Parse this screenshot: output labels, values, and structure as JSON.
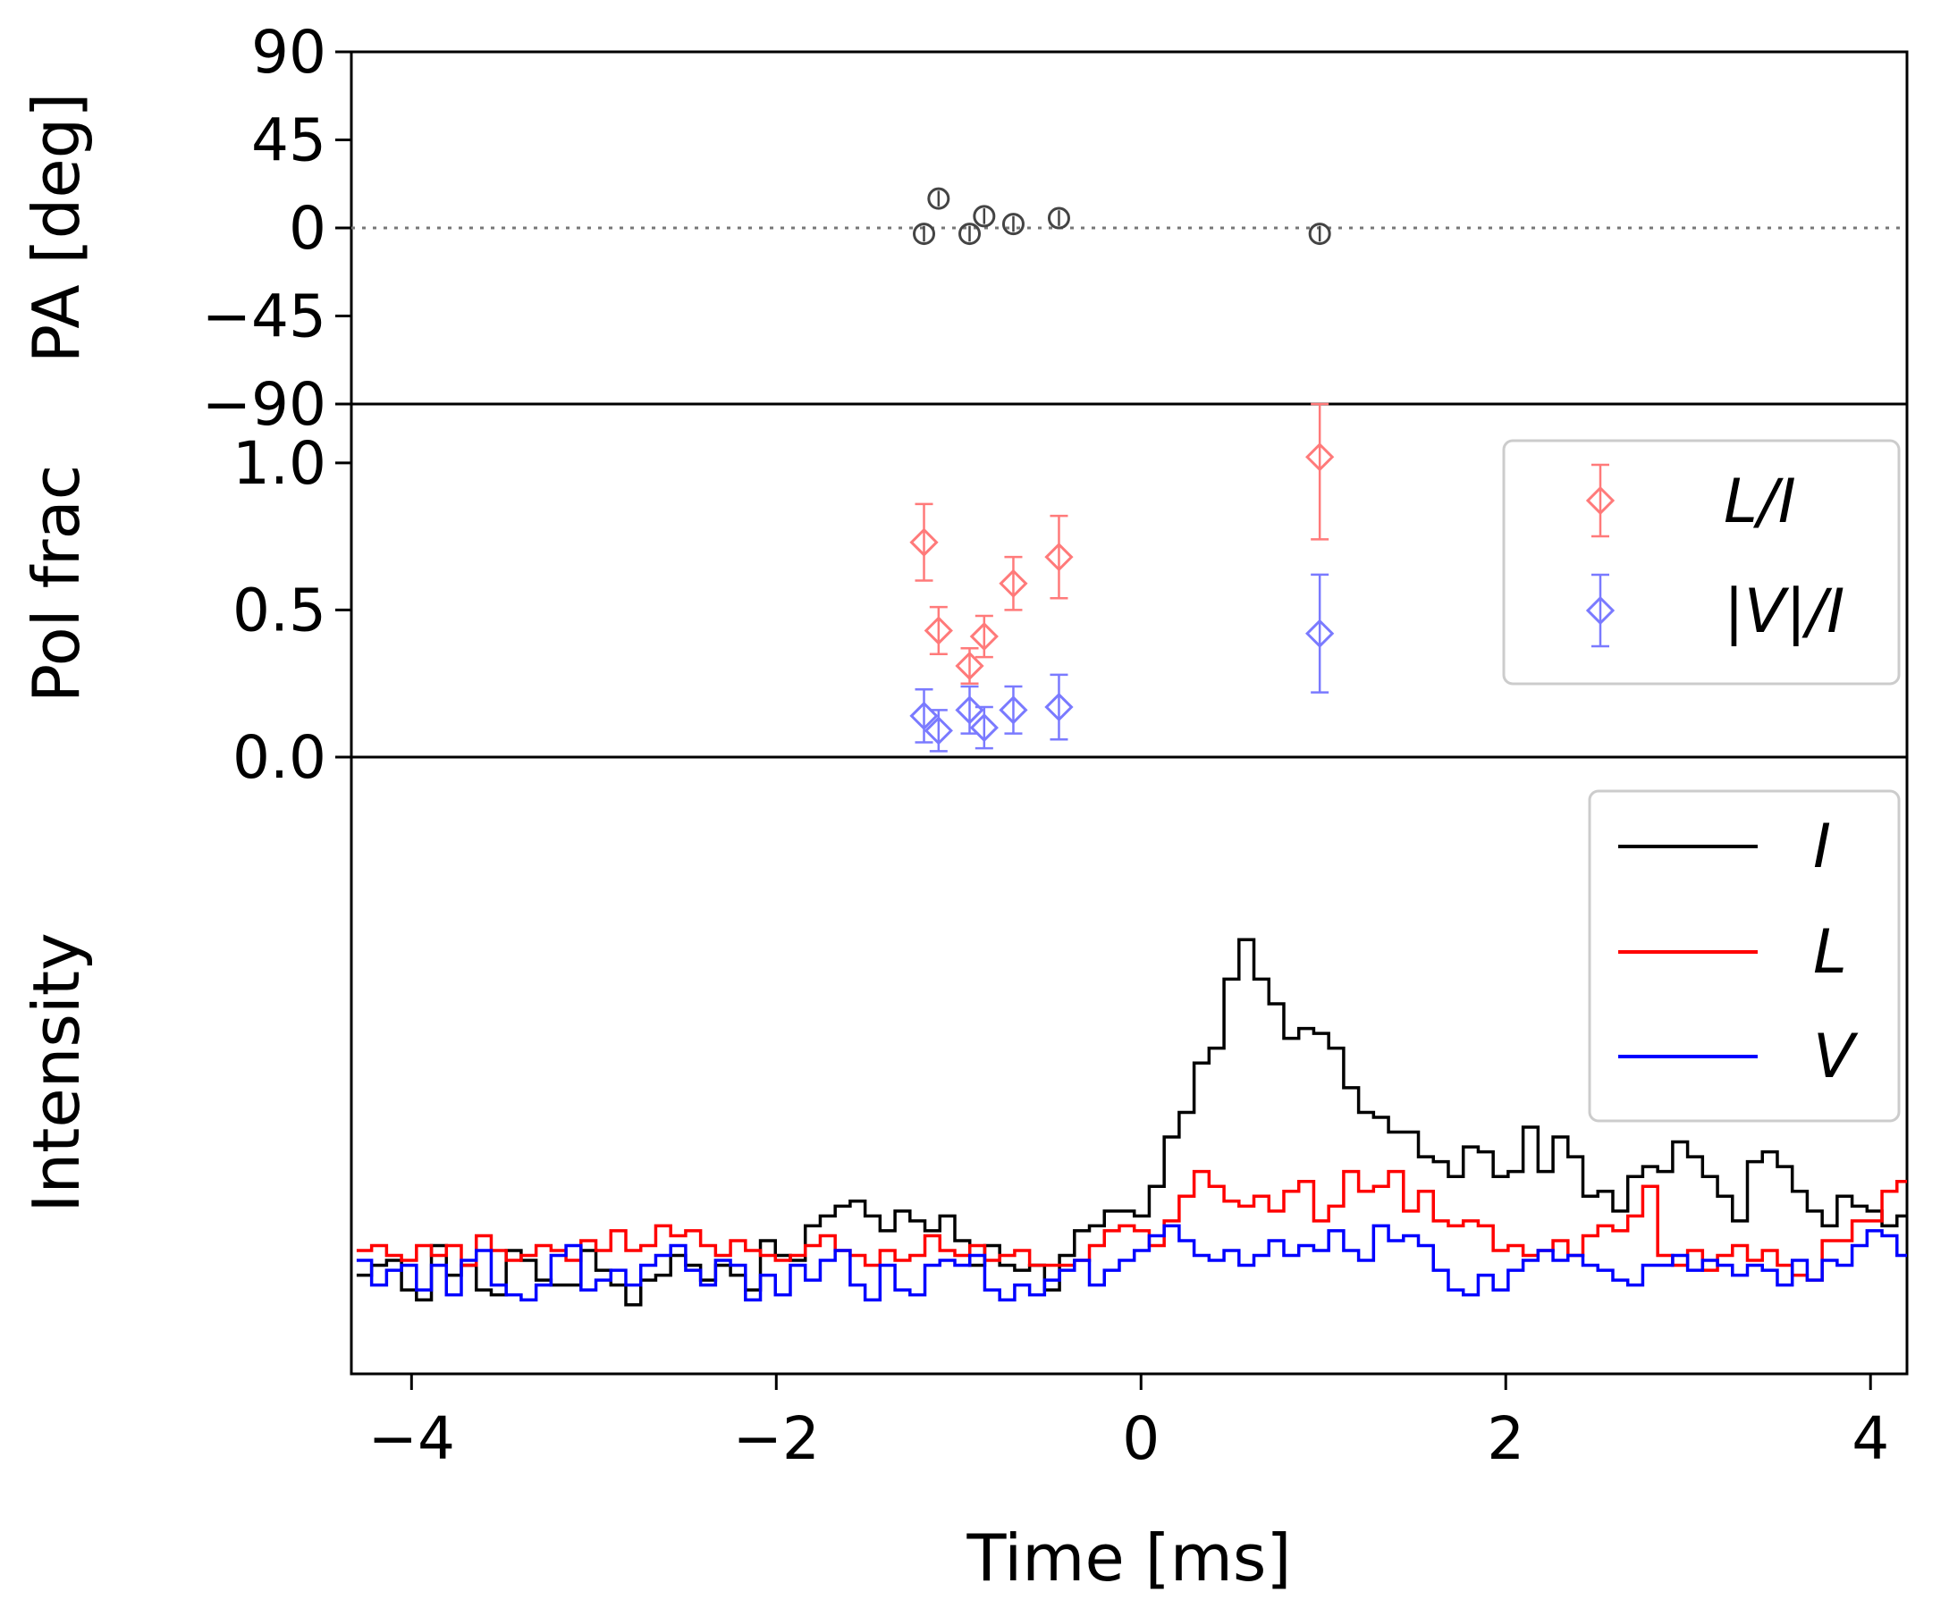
{
  "chart_data": [
    {
      "panel": "pa",
      "type": "scatter",
      "ylabel": "PA [deg]",
      "ylim": [
        -90,
        90
      ],
      "yticks": [
        90,
        45,
        0,
        -45,
        -90
      ],
      "ytick_labels": [
        "90",
        "45",
        "0",
        "−45",
        "−90"
      ],
      "reference_line": {
        "y": 0,
        "style": "dotted"
      },
      "series": [
        {
          "color": "#444444",
          "marker": "circle",
          "x": [
            -1.19,
            -1.11,
            -0.94,
            -0.86,
            -0.7,
            -0.45,
            0.98
          ],
          "y": [
            -3,
            15,
            -3,
            6,
            2,
            5,
            -3
          ],
          "err": [
            4,
            4,
            4,
            4,
            4,
            4,
            4
          ]
        }
      ]
    },
    {
      "panel": "polfrac",
      "type": "scatter",
      "ylabel": "Pol frac",
      "ylim": [
        0,
        1.2
      ],
      "yticks": [
        0,
        0.5,
        1.0
      ],
      "ytick_labels": [
        "0.0",
        "0.5",
        "1.0"
      ],
      "legend": {
        "placement": "top-right"
      },
      "series": [
        {
          "name": "L/I",
          "color": "#ff7a7a",
          "marker": "diamond",
          "x": [
            -1.19,
            -1.11,
            -0.94,
            -0.86,
            -0.7,
            -0.45,
            0.98
          ],
          "y": [
            0.73,
            0.43,
            0.31,
            0.41,
            0.59,
            0.68,
            1.02
          ],
          "err": [
            0.13,
            0.08,
            0.06,
            0.07,
            0.09,
            0.14,
            0.28
          ]
        },
        {
          "name": "|V|/I",
          "color": "#7a7aff",
          "marker": "diamond",
          "x": [
            -1.19,
            -1.11,
            -0.94,
            -0.86,
            -0.7,
            -0.45,
            0.98
          ],
          "y": [
            0.14,
            0.09,
            0.16,
            0.1,
            0.16,
            0.17,
            0.42
          ],
          "err": [
            0.09,
            0.07,
            0.08,
            0.07,
            0.08,
            0.11,
            0.2
          ]
        }
      ]
    },
    {
      "panel": "intensity",
      "type": "line",
      "drawstyle": "steps-mid",
      "ylabel": "Intensity",
      "xlabel": "Time [ms]",
      "xlim": [
        -4.33,
        4.2
      ],
      "xticks": [
        -4,
        -2,
        0,
        2,
        4
      ],
      "xtick_labels": [
        "−4",
        "−2",
        "0",
        "2",
        "4"
      ],
      "ylim": [
        -0.2,
        1.05
      ],
      "legend": {
        "placement": "top-right"
      },
      "x_start": -4.26,
      "x_step": 0.082,
      "series": [
        {
          "name": "I",
          "color": "#000000",
          "values": [
            0.0,
            0.02,
            0.03,
            -0.03,
            -0.05,
            0.06,
            0.0,
            0.02,
            -0.03,
            -0.04,
            0.05,
            0.03,
            -0.01,
            -0.02,
            -0.02,
            0.05,
            0.01,
            -0.02,
            -0.06,
            -0.01,
            0.0,
            0.04,
            0.02,
            -0.01,
            0.02,
            0.0,
            -0.03,
            0.07,
            0.04,
            0.03,
            0.1,
            0.12,
            0.14,
            0.15,
            0.12,
            0.09,
            0.13,
            0.11,
            0.09,
            0.12,
            0.07,
            0.02,
            0.06,
            0.02,
            0.01,
            0.02,
            -0.03,
            0.04,
            0.09,
            0.1,
            0.13,
            0.13,
            0.12,
            0.18,
            0.28,
            0.33,
            0.43,
            0.46,
            0.6,
            0.68,
            0.6,
            0.55,
            0.48,
            0.5,
            0.49,
            0.46,
            0.38,
            0.33,
            0.32,
            0.29,
            0.29,
            0.24,
            0.23,
            0.2,
            0.26,
            0.25,
            0.2,
            0.21,
            0.3,
            0.21,
            0.28,
            0.24,
            0.16,
            0.17,
            0.13,
            0.2,
            0.22,
            0.21,
            0.27,
            0.24,
            0.2,
            0.16,
            0.11,
            0.23,
            0.25,
            0.22,
            0.17,
            0.13,
            0.1,
            0.16,
            0.14,
            0.13,
            0.1,
            0.12,
            0.16,
            0.11,
            0.13,
            0.1,
            0.06,
            0.04,
            0.08,
            0.03,
            0.0,
            0.05,
            0.05,
            0.01,
            0.03,
            0.0,
            0.04,
            0.03,
            0.0,
            -0.01,
            0.04,
            0.02,
            -0.01,
            0.06,
            0.01,
            0.08,
            0.04,
            -0.02,
            0.01,
            -0.01,
            0.02,
            0.05,
            -0.01,
            0.01,
            0.02,
            0.02,
            0.03,
            0.07,
            0.05,
            0.07,
            0.08,
            0.04,
            0.0,
            0.03,
            0.05,
            0.0,
            0.05,
            0.03,
            0.01,
            0.02,
            0.04,
            -0.02,
            -0.01,
            0.0,
            0.03,
            0.05,
            0.0,
            0.03,
            0.04,
            0.03,
            0.06,
            0.02,
            0.03,
            0.0
          ]
        },
        {
          "name": "L",
          "color": "#ff0000",
          "values": [
            0.05,
            0.06,
            0.04,
            0.03,
            0.06,
            0.04,
            0.06,
            0.02,
            0.08,
            0.05,
            0.03,
            0.04,
            0.06,
            0.05,
            0.03,
            0.07,
            0.05,
            0.09,
            0.05,
            0.06,
            0.1,
            0.08,
            0.09,
            0.06,
            0.04,
            0.07,
            0.05,
            0.04,
            0.03,
            0.04,
            0.06,
            0.08,
            0.05,
            0.04,
            0.02,
            0.05,
            0.03,
            0.04,
            0.08,
            0.05,
            0.04,
            0.06,
            0.03,
            0.04,
            0.05,
            0.02,
            0.02,
            0.02,
            0.03,
            0.06,
            0.09,
            0.1,
            0.09,
            0.06,
            0.11,
            0.16,
            0.21,
            0.18,
            0.15,
            0.14,
            0.16,
            0.13,
            0.17,
            0.19,
            0.11,
            0.14,
            0.21,
            0.17,
            0.18,
            0.21,
            0.13,
            0.17,
            0.11,
            0.1,
            0.11,
            0.1,
            0.05,
            0.06,
            0.04,
            0.05,
            0.07,
            0.04,
            0.08,
            0.1,
            0.09,
            0.12,
            0.18,
            0.04,
            0.02,
            0.05,
            0.01,
            0.04,
            0.06,
            0.03,
            0.05,
            0.02,
            0.0,
            -0.01,
            0.07,
            0.07,
            0.11,
            0.11,
            0.17,
            0.19,
            0.07,
            0.12,
            0.1,
            0.09,
            0.09,
            0.07,
            0.05,
            0.05,
            0.1,
            0.05,
            0.06,
            0.04,
            0.04,
            0.05,
            0.07,
            0.06,
            0.05,
            0.04,
            0.04,
            0.03,
            0.04,
            0.06,
            0.04,
            0.03,
            0.04,
            0.03,
            0.02,
            0.05,
            0.04,
            0.03,
            0.04,
            0.02,
            0.03,
            0.04,
            0.03,
            0.04,
            0.02,
            0.06,
            0.04,
            0.05,
            0.05,
            0.06,
            0.03,
            0.04,
            0.03,
            0.04,
            0.05,
            0.06,
            0.04,
            0.03,
            0.05,
            0.05,
            0.04,
            0.06,
            0.04,
            0.02,
            0.04,
            0.05,
            0.03,
            0.05,
            0.06,
            0.03,
            0.05,
            0.04,
            0.03,
            0.05
          ]
        },
        {
          "name": "V",
          "color": "#0000ff",
          "values": [
            0.03,
            -0.02,
            0.01,
            0.02,
            -0.03,
            0.02,
            -0.04,
            0.03,
            0.05,
            -0.02,
            -0.04,
            -0.05,
            -0.02,
            0.04,
            0.06,
            -0.03,
            -0.01,
            0.01,
            -0.02,
            0.02,
            0.04,
            0.06,
            0.01,
            -0.02,
            0.03,
            0.02,
            -0.05,
            0.0,
            -0.04,
            0.02,
            -0.01,
            0.03,
            0.05,
            -0.02,
            -0.05,
            0.02,
            -0.03,
            -0.04,
            0.02,
            0.03,
            0.02,
            0.04,
            -0.03,
            -0.05,
            -0.02,
            -0.04,
            -0.01,
            0.01,
            0.03,
            -0.02,
            0.01,
            0.03,
            0.05,
            0.08,
            0.1,
            0.07,
            0.04,
            0.03,
            0.05,
            0.02,
            0.04,
            0.07,
            0.04,
            0.06,
            0.05,
            0.09,
            0.05,
            0.03,
            0.1,
            0.07,
            0.08,
            0.06,
            0.01,
            -0.03,
            -0.04,
            0.0,
            -0.03,
            0.01,
            0.03,
            0.05,
            0.03,
            0.04,
            0.02,
            0.01,
            -0.01,
            -0.02,
            0.02,
            0.02,
            0.04,
            0.01,
            0.03,
            0.02,
            0.0,
            0.02,
            0.01,
            -0.02,
            0.03,
            -0.01,
            0.03,
            0.02,
            0.06,
            0.09,
            0.08,
            0.04,
            0.09,
            0.12,
            0.08,
            0.1,
            0.07,
            0.09,
            0.11,
            0.05,
            0.08,
            0.1,
            0.05,
            0.03,
            0.05,
            0.07,
            0.04,
            0.02,
            0.01,
            0.03,
            -0.03,
            0.02,
            -0.04,
            0.03,
            0.05,
            0.01,
            -0.03,
            -0.02,
            -0.04,
            0.01,
            -0.03,
            -0.06,
            -0.04,
            -0.02,
            -0.01,
            -0.03,
            0.01,
            0.02,
            -0.05,
            -0.04,
            -0.06,
            -0.03,
            -0.07,
            0.0,
            -0.02,
            -0.03,
            0.02,
            -0.06,
            -0.03,
            -0.02,
            -0.01,
            0.03,
            -0.02,
            -0.04,
            -0.05,
            -0.06,
            -0.03,
            0.0,
            0.04,
            -0.02,
            -0.03,
            0.01,
            0.03,
            -0.01,
            0.02,
            0.0
          ]
        }
      ]
    }
  ]
}
